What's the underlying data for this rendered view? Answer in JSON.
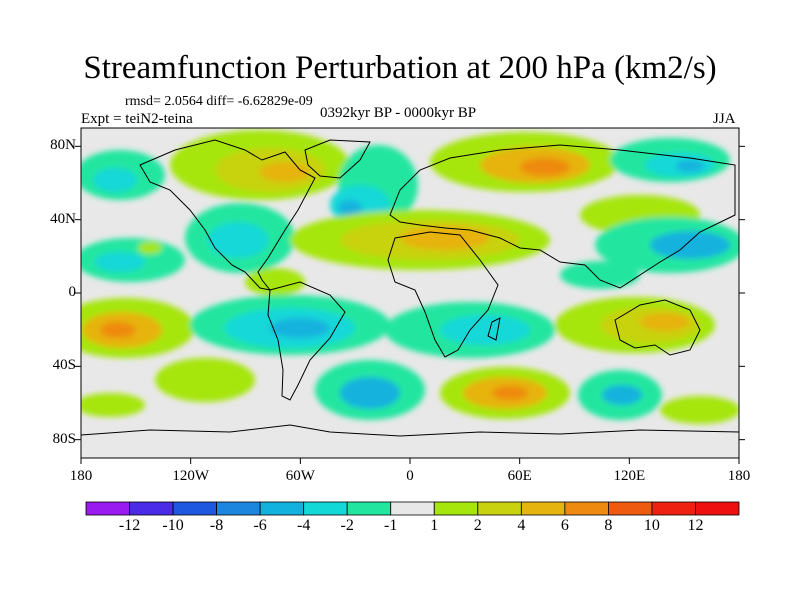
{
  "title": "Streamfunction Perturbation at 200 hPa (km2/s)",
  "stats": "rmsd= 2.0564 diff= -6.62829e-09",
  "experiment": "Expt = teiN2-teina",
  "period": "0392kyr BP - 0000kyr BP",
  "season": "JJA",
  "lat_labels": [
    "80N",
    "40N",
    "0",
    "40S",
    "80S"
  ],
  "lat_values": [
    80,
    40,
    0,
    -40,
    -80
  ],
  "lon_labels": [
    "180",
    "120W",
    "60W",
    "0",
    "60E",
    "120E",
    "180"
  ],
  "lon_values": [
    -180,
    -120,
    -60,
    0,
    60,
    120,
    180
  ],
  "colorbar": {
    "labels": [
      "-12",
      "-10",
      "-8",
      "-6",
      "-4",
      "-2",
      "-1",
      "1",
      "2",
      "4",
      "6",
      "8",
      "10",
      "12"
    ],
    "colors": [
      "#9a1bf0",
      "#4b2be8",
      "#1f58e0",
      "#1c86de",
      "#12b2de",
      "#12d8d8",
      "#22e6a0",
      "#e8e8e8",
      "#a6e60c",
      "#c8d20e",
      "#e6b40e",
      "#ee8a10",
      "#ee5a10",
      "#ee2010",
      "#ee1010"
    ]
  },
  "colors": {
    "pos1": "#a6e60c",
    "pos2": "#c8d20e",
    "pos3": "#e6b40e",
    "pos4": "#ee8a10",
    "neg1": "#22e6a0",
    "neg2": "#12d8d8",
    "neg3": "#12b2de",
    "neg4": "#1c86de",
    "neutral": "#e8e8e8"
  }
}
